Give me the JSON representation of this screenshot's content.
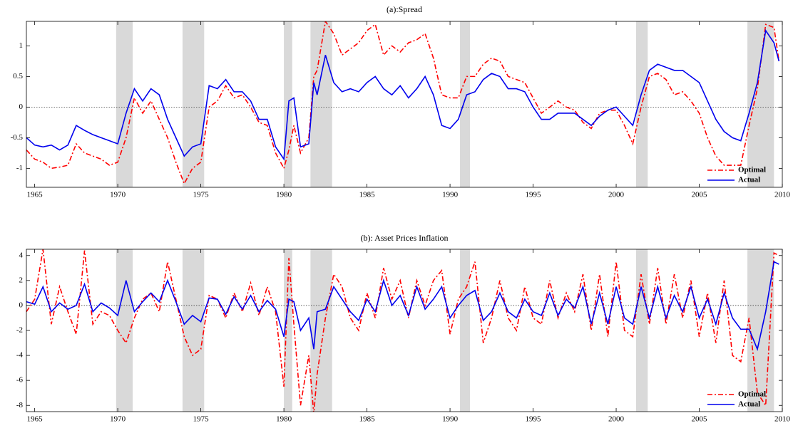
{
  "chart_data": [
    {
      "type": "line",
      "title": "(a):Spread",
      "x": [
        1964.5,
        1965,
        1965.5,
        1966,
        1966.5,
        1967,
        1967.5,
        1968,
        1968.5,
        1969,
        1969.5,
        1970,
        1970.5,
        1971,
        1971.5,
        1972,
        1972.5,
        1973,
        1973.5,
        1974,
        1974.5,
        1975,
        1975.5,
        1976,
        1976.5,
        1977,
        1977.5,
        1978,
        1978.5,
        1979,
        1979.5,
        1980,
        1980.3,
        1980.6,
        1981,
        1981.5,
        1981.8,
        1982,
        1982.5,
        1983,
        1983.5,
        1984,
        1984.5,
        1985,
        1985.5,
        1986,
        1986.5,
        1987,
        1987.5,
        1988,
        1988.5,
        1989,
        1989.5,
        1990,
        1990.5,
        1991,
        1991.5,
        1992,
        1992.5,
        1993,
        1993.5,
        1994,
        1994.5,
        1995,
        1995.5,
        1996,
        1996.5,
        1997,
        1997.5,
        1998,
        1998.5,
        1999,
        1999.5,
        2000,
        2000.5,
        2001,
        2001.5,
        2002,
        2002.5,
        2003,
        2003.5,
        2004,
        2004.5,
        2005,
        2005.5,
        2006,
        2006.5,
        2007,
        2007.5,
        2008,
        2008.5,
        2009,
        2009.5,
        2009.8
      ],
      "series": [
        {
          "name": "Optimal",
          "color": "#ff0000",
          "dash": "dashdot",
          "values": [
            -0.7,
            -0.85,
            -0.9,
            -1.0,
            -0.98,
            -0.95,
            -0.6,
            -0.75,
            -0.8,
            -0.85,
            -0.95,
            -0.9,
            -0.5,
            0.15,
            -0.1,
            0.1,
            -0.2,
            -0.5,
            -0.9,
            -1.25,
            -1.0,
            -0.9,
            0.0,
            0.1,
            0.35,
            0.15,
            0.2,
            0.0,
            -0.25,
            -0.3,
            -0.75,
            -1.0,
            -0.7,
            -0.3,
            -0.75,
            -0.5,
            0.5,
            0.6,
            1.4,
            1.2,
            0.85,
            0.95,
            1.05,
            1.25,
            1.35,
            0.85,
            1.0,
            0.9,
            1.05,
            1.1,
            1.2,
            0.8,
            0.2,
            0.15,
            0.15,
            0.5,
            0.5,
            0.7,
            0.8,
            0.75,
            0.5,
            0.45,
            0.4,
            0.15,
            -0.1,
            0.0,
            0.1,
            0.0,
            -0.05,
            -0.25,
            -0.35,
            -0.1,
            -0.05,
            -0.05,
            -0.3,
            -0.6,
            0.0,
            0.5,
            0.55,
            0.45,
            0.2,
            0.25,
            0.1,
            -0.1,
            -0.5,
            -0.8,
            -0.95,
            -0.95,
            -0.95,
            -0.3,
            0.3,
            1.35,
            1.3,
            0.75
          ]
        },
        {
          "name": "Actual",
          "color": "#0000ee",
          "dash": "solid",
          "values": [
            -0.5,
            -0.62,
            -0.65,
            -0.62,
            -0.7,
            -0.62,
            -0.3,
            -0.38,
            -0.45,
            -0.5,
            -0.55,
            -0.6,
            -0.1,
            0.3,
            0.1,
            0.3,
            0.2,
            -0.2,
            -0.5,
            -0.8,
            -0.65,
            -0.6,
            0.35,
            0.3,
            0.45,
            0.25,
            0.25,
            0.1,
            -0.2,
            -0.2,
            -0.65,
            -0.85,
            0.1,
            0.15,
            -0.65,
            -0.6,
            0.4,
            0.2,
            0.85,
            0.4,
            0.25,
            0.3,
            0.25,
            0.4,
            0.5,
            0.3,
            0.2,
            0.35,
            0.15,
            0.3,
            0.5,
            0.2,
            -0.3,
            -0.35,
            -0.2,
            0.2,
            0.25,
            0.45,
            0.55,
            0.5,
            0.3,
            0.3,
            0.25,
            0,
            -0.2,
            -0.2,
            -0.1,
            -0.1,
            -0.1,
            -0.2,
            -0.3,
            -0.15,
            -0.05,
            0,
            -0.15,
            -0.3,
            0.2,
            0.6,
            0.7,
            0.65,
            0.6,
            0.6,
            0.5,
            0.4,
            0.1,
            -0.2,
            -0.4,
            -0.5,
            -0.55,
            -0.1,
            0.4,
            1.25,
            1.05,
            0.75
          ]
        }
      ],
      "xlim": [
        1964.5,
        2010
      ],
      "ylim": [
        -1.31,
        1.4
      ],
      "xticks": [
        1965,
        1970,
        1975,
        1980,
        1985,
        1990,
        1995,
        2000,
        2005,
        2010
      ],
      "yticks": [
        -1,
        -0.5,
        0,
        0.5,
        1
      ],
      "reference_line": 0,
      "shaded_periods": [
        [
          1969.9,
          1970.9
        ],
        [
          1973.9,
          1975.2
        ],
        [
          1980.0,
          1980.5
        ],
        [
          1981.6,
          1982.9
        ],
        [
          1990.6,
          1991.2
        ],
        [
          2001.2,
          2001.9
        ],
        [
          2007.9,
          2009.5
        ]
      ],
      "legend": "lower right"
    },
    {
      "type": "line",
      "title": "(b): Asset Prices Inflation",
      "x": [
        1964.5,
        1965,
        1965.5,
        1966,
        1966.5,
        1967,
        1967.5,
        1968,
        1968.5,
        1969,
        1969.5,
        1970,
        1970.5,
        1971,
        1971.5,
        1972,
        1972.5,
        1973,
        1973.5,
        1974,
        1974.5,
        1975,
        1975.5,
        1976,
        1976.5,
        1977,
        1977.5,
        1978,
        1978.5,
        1979,
        1979.5,
        1980,
        1980.3,
        1980.6,
        1981,
        1981.5,
        1981.8,
        1982,
        1982.5,
        1983,
        1983.5,
        1984,
        1984.5,
        1985,
        1985.5,
        1986,
        1986.5,
        1987,
        1987.5,
        1988,
        1988.5,
        1989,
        1989.5,
        1990,
        1990.5,
        1991,
        1991.5,
        1992,
        1992.5,
        1993,
        1993.5,
        1994,
        1994.5,
        1995,
        1995.5,
        1996,
        1996.5,
        1997,
        1997.5,
        1998,
        1998.5,
        1999,
        1999.5,
        2000,
        2000.5,
        2001,
        2001.5,
        2002,
        2002.5,
        2003,
        2003.5,
        2004,
        2004.5,
        2005,
        2005.5,
        2006,
        2006.5,
        2007,
        2007.5,
        2008,
        2008.5,
        2009,
        2009.5,
        2009.8
      ],
      "series": [
        {
          "name": "Optimal",
          "color": "#ff0000",
          "dash": "dashdot",
          "values": [
            -0.5,
            0.5,
            4.5,
            -1.5,
            1.5,
            -0.5,
            -2.3,
            4.4,
            -1.5,
            -0.5,
            -0.8,
            -2.0,
            -3.0,
            -1.0,
            0.5,
            1.0,
            -0.5,
            3.5,
            0.5,
            -2.5,
            -4.0,
            -3.5,
            0.8,
            0.5,
            -1.0,
            1.0,
            -0.5,
            1.8,
            -0.8,
            1.5,
            -0.5,
            -6.5,
            3.8,
            -1.5,
            -8.0,
            -4.0,
            -8.7,
            -5.5,
            -1.0,
            2.5,
            1.5,
            -1.0,
            -2.0,
            1.0,
            -1.0,
            3.0,
            0.5,
            2.0,
            -1.0,
            2.0,
            0.0,
            2.0,
            2.8,
            -2.3,
            0.5,
            1.5,
            3.5,
            -3.0,
            -1.0,
            2.0,
            -1.0,
            -2.0,
            1.5,
            -1.0,
            -1.5,
            2.0,
            -1.0,
            1.0,
            -0.5,
            2.5,
            -2.0,
            2.5,
            -2.5,
            3.5,
            -2.0,
            -2.5,
            2.5,
            -1.5,
            3.0,
            -1.5,
            2.5,
            -1.0,
            2.0,
            -2.5,
            1.0,
            -3.0,
            2.0,
            -4.0,
            -4.5,
            -1.0,
            -7.0,
            -8.0,
            4.2,
            4.0
          ]
        },
        {
          "name": "Actual",
          "color": "#0000ee",
          "dash": "solid",
          "values": [
            0.3,
            0.1,
            1.5,
            -0.5,
            0.2,
            -0.3,
            0.0,
            1.7,
            -0.5,
            0.2,
            -0.2,
            -0.8,
            2.0,
            -0.5,
            0.3,
            1.0,
            0.3,
            2.0,
            0.3,
            -1.5,
            -0.8,
            -1.3,
            0.6,
            0.5,
            -0.7,
            0.7,
            -0.3,
            0.8,
            -0.5,
            0.4,
            -0.3,
            -2.5,
            0.5,
            0.3,
            -2.0,
            -1.0,
            -3.5,
            -0.5,
            -0.3,
            1.5,
            0.5,
            -0.5,
            -1.2,
            0.5,
            -0.5,
            2.0,
            0.0,
            0.8,
            -0.8,
            1.5,
            -0.3,
            0.5,
            1.5,
            -1.0,
            0.0,
            0.8,
            1.2,
            -1.2,
            -0.5,
            1.0,
            -0.5,
            -1.0,
            0.5,
            -0.5,
            -0.8,
            1.0,
            -0.8,
            0.5,
            -0.2,
            1.5,
            -1.5,
            1.0,
            -1.5,
            1.5,
            -1.0,
            -1.5,
            1.5,
            -1.0,
            1.5,
            -1.0,
            0.8,
            -0.5,
            1.5,
            -1.0,
            0.5,
            -1.5,
            1.0,
            -1.0,
            -1.9,
            -1.9,
            -3.5,
            -0.5,
            3.5,
            3.3
          ]
        }
      ],
      "xlim": [
        1964.5,
        2010
      ],
      "ylim": [
        -8.5,
        4.5
      ],
      "xticks": [
        1965,
        1970,
        1975,
        1980,
        1985,
        1990,
        1995,
        2000,
        2005,
        2010
      ],
      "yticks": [
        -8,
        -6,
        -4,
        -2,
        0,
        2,
        4
      ],
      "reference_line": 0,
      "shaded_periods": [
        [
          1969.9,
          1970.9
        ],
        [
          1973.9,
          1975.2
        ],
        [
          1980.0,
          1980.5
        ],
        [
          1981.6,
          1982.9
        ],
        [
          1990.6,
          1991.2
        ],
        [
          2001.2,
          2001.9
        ],
        [
          2007.9,
          2009.5
        ]
      ],
      "legend": "lower right"
    }
  ]
}
